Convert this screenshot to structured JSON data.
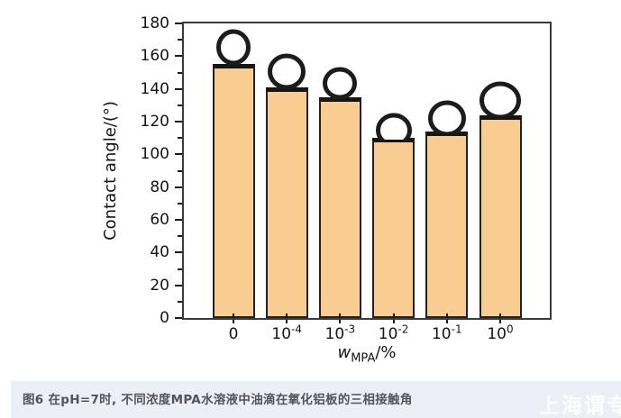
{
  "chart_data": {
    "type": "bar",
    "title": "",
    "ylabel": "Contact angle/(°)",
    "xlabel": "w_MPA/%",
    "xlabel_parts": {
      "var": "w",
      "sub": "MPA",
      "unit": "/%"
    },
    "ylim": [
      0,
      180
    ],
    "ytick_step": 20,
    "ytick_minor_step": 10,
    "ytick_labels": [
      "0",
      "20",
      "40",
      "60",
      "80",
      "100",
      "120",
      "140",
      "160",
      "180"
    ],
    "grid": false,
    "legend": null,
    "categories": [
      "0",
      "10⁻⁴",
      "10⁻³",
      "10⁻²",
      "10⁻¹",
      "10⁰"
    ],
    "values": [
      155,
      141,
      135,
      110,
      114,
      124
    ],
    "bars": [
      {
        "category_base": "0",
        "category_exp": "",
        "value": 155,
        "droplet": {
          "w": 38,
          "h": 40,
          "visible": 38
        }
      },
      {
        "category_base": "10",
        "category_exp": "-4",
        "value": 141,
        "droplet": {
          "w": 42,
          "h": 40,
          "visible": 37
        }
      },
      {
        "category_base": "10",
        "category_exp": "-3",
        "value": 135,
        "droplet": {
          "w": 38,
          "h": 36,
          "visible": 33
        }
      },
      {
        "category_base": "10",
        "category_exp": "-2",
        "value": 110,
        "droplet": {
          "w": 40,
          "h": 38,
          "visible": 27
        }
      },
      {
        "category_base": "10",
        "category_exp": "-1",
        "value": 114,
        "droplet": {
          "w": 42,
          "h": 40,
          "visible": 34
        }
      },
      {
        "category_base": "10",
        "category_exp": "0",
        "value": 124,
        "droplet": {
          "w": 46,
          "h": 42,
          "visible": 37
        }
      }
    ],
    "colors": {
      "bar_fill": "#F9CD92",
      "bar_border": "#222222",
      "bar_cap": "#161616",
      "axis": "#3b3b3b",
      "text": "#141414",
      "droplet_ring": "#1c1c1c",
      "droplet_fill": "#ffffff"
    }
  },
  "caption": {
    "text": "图6 在pH=7时, 不同浓度MPA水溶液中油滴在氧化铝板的三相接触角",
    "background": "#edeff6",
    "text_color": "#53535c"
  },
  "watermark": {
    "text": "上海谓专",
    "color": "#ffffff"
  }
}
